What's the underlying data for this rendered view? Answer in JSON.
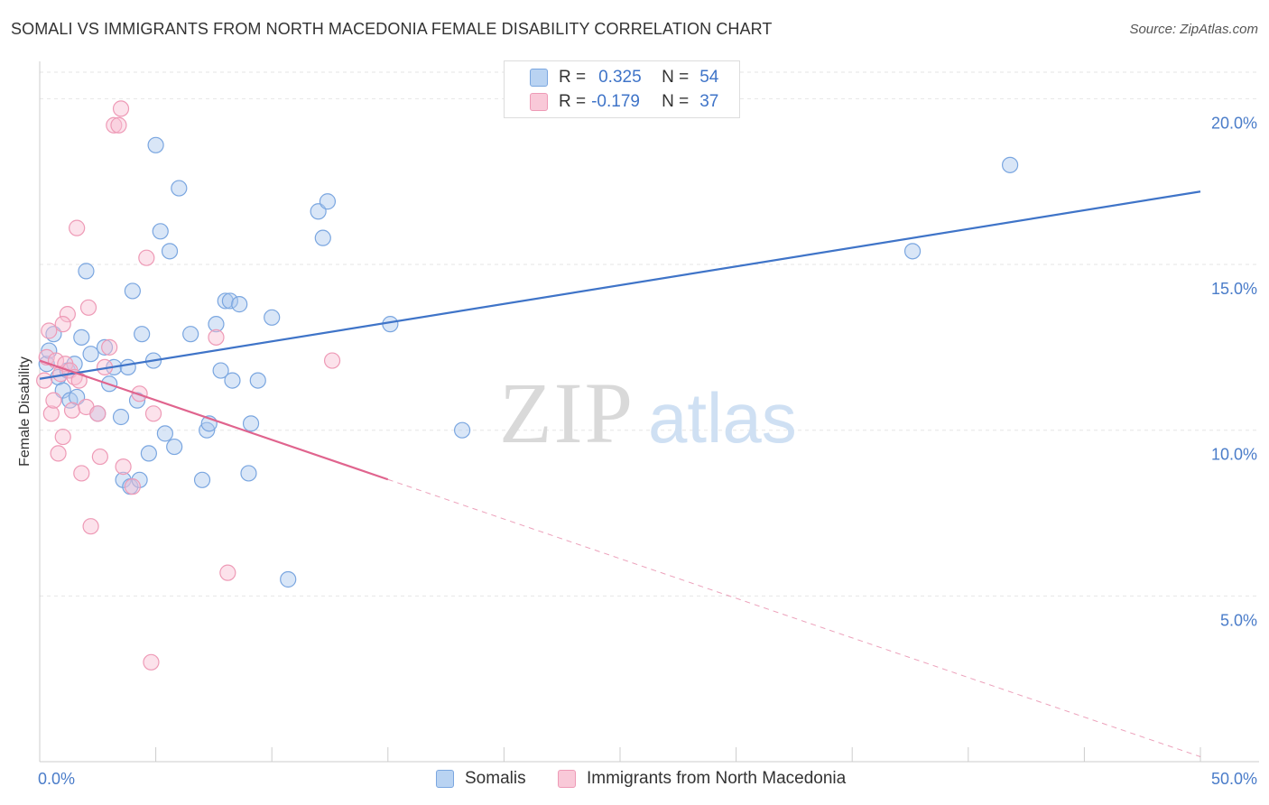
{
  "title": "SOMALI VS IMMIGRANTS FROM NORTH MACEDONIA FEMALE DISABILITY CORRELATION CHART",
  "source": "Source: ZipAtlas.com",
  "watermark": {
    "zip": "ZIP",
    "atlas": "atlas"
  },
  "legend": {
    "r_label": "R =",
    "n_label": "N =",
    "rows": [
      {
        "r": "0.325",
        "n": "54",
        "fill": "#b9d3f2",
        "stroke": "#7aa6e0"
      },
      {
        "r": "-0.179",
        "n": "37",
        "fill": "#f9c9d8",
        "stroke": "#ee9ab6"
      }
    ]
  },
  "bottom_legend": [
    {
      "label": "Somalis",
      "fill": "#b9d3f2",
      "stroke": "#7aa6e0"
    },
    {
      "label": "Immigrants from North Macedonia",
      "fill": "#f9c9d8",
      "stroke": "#ee9ab6"
    }
  ],
  "chart_data": {
    "type": "scatter",
    "ylabel": "Female Disability",
    "xlabel": "",
    "xlim": [
      0,
      50
    ],
    "ylim": [
      0,
      20.8
    ],
    "x_tick_labels": {
      "left": "0.0%",
      "right": "50.0%"
    },
    "y_ticks": [
      {
        "value": 5,
        "label": "5.0%"
      },
      {
        "value": 10,
        "label": "10.0%"
      },
      {
        "value": 15,
        "label": "15.0%"
      },
      {
        "value": 20,
        "label": "20.0%"
      }
    ],
    "series": [
      {
        "name": "Somalis",
        "color": "#3f74c8",
        "fill": "rgba(170,200,238,0.45)",
        "stroke": "#7aa6e0",
        "trend": {
          "x0": 0,
          "y0": 11.55,
          "x1": 50,
          "y1": 17.2,
          "solid_to": 50
        },
        "points": [
          [
            0.3,
            12.0
          ],
          [
            0.4,
            12.4
          ],
          [
            0.6,
            12.9
          ],
          [
            0.8,
            11.6
          ],
          [
            1.0,
            11.2
          ],
          [
            1.2,
            11.8
          ],
          [
            1.3,
            10.9
          ],
          [
            1.5,
            12.0
          ],
          [
            1.6,
            11.0
          ],
          [
            1.8,
            12.8
          ],
          [
            2.0,
            14.8
          ],
          [
            2.2,
            12.3
          ],
          [
            2.5,
            10.5
          ],
          [
            2.8,
            12.5
          ],
          [
            3.0,
            11.4
          ],
          [
            3.2,
            11.9
          ],
          [
            3.5,
            10.4
          ],
          [
            3.6,
            8.5
          ],
          [
            3.8,
            11.9
          ],
          [
            3.9,
            8.3
          ],
          [
            4.0,
            14.2
          ],
          [
            4.2,
            10.9
          ],
          [
            4.3,
            8.5
          ],
          [
            4.4,
            12.9
          ],
          [
            4.7,
            9.3
          ],
          [
            4.9,
            12.1
          ],
          [
            5.0,
            18.6
          ],
          [
            5.2,
            16.0
          ],
          [
            5.4,
            9.9
          ],
          [
            5.6,
            15.4
          ],
          [
            5.8,
            9.5
          ],
          [
            6.0,
            17.3
          ],
          [
            6.5,
            12.9
          ],
          [
            7.0,
            8.5
          ],
          [
            7.2,
            10.0
          ],
          [
            7.3,
            10.2
          ],
          [
            7.6,
            13.2
          ],
          [
            7.8,
            11.8
          ],
          [
            8.0,
            13.9
          ],
          [
            8.2,
            13.9
          ],
          [
            8.3,
            11.5
          ],
          [
            8.6,
            13.8
          ],
          [
            9.0,
            8.7
          ],
          [
            9.1,
            10.2
          ],
          [
            9.4,
            11.5
          ],
          [
            10.0,
            13.4
          ],
          [
            10.7,
            5.5
          ],
          [
            12.0,
            16.6
          ],
          [
            12.2,
            15.8
          ],
          [
            12.4,
            16.9
          ],
          [
            15.1,
            13.2
          ],
          [
            18.2,
            10.0
          ],
          [
            37.6,
            15.4
          ],
          [
            41.8,
            18.0
          ]
        ]
      },
      {
        "name": "Immigrants from North Macedonia",
        "color": "#e0648e",
        "fill": "rgba(248,190,210,0.45)",
        "stroke": "#ee9ab6",
        "trend": {
          "x0": 0,
          "y0": 12.1,
          "x1": 50,
          "y1": 0.15,
          "solid_to": 15.0
        },
        "points": [
          [
            0.2,
            11.5
          ],
          [
            0.3,
            12.2
          ],
          [
            0.4,
            13.0
          ],
          [
            0.5,
            10.5
          ],
          [
            0.6,
            10.9
          ],
          [
            0.7,
            12.1
          ],
          [
            0.8,
            9.3
          ],
          [
            0.9,
            11.7
          ],
          [
            1.0,
            9.8
          ],
          [
            1.1,
            12.0
          ],
          [
            1.2,
            13.5
          ],
          [
            1.3,
            11.8
          ],
          [
            1.4,
            10.6
          ],
          [
            1.5,
            11.6
          ],
          [
            1.6,
            16.1
          ],
          [
            1.7,
            11.5
          ],
          [
            1.8,
            8.7
          ],
          [
            2.0,
            10.7
          ],
          [
            2.1,
            13.7
          ],
          [
            2.2,
            7.1
          ],
          [
            2.5,
            10.5
          ],
          [
            2.6,
            9.2
          ],
          [
            3.0,
            12.5
          ],
          [
            3.2,
            19.2
          ],
          [
            3.4,
            19.2
          ],
          [
            3.5,
            19.7
          ],
          [
            3.6,
            8.9
          ],
          [
            4.0,
            8.3
          ],
          [
            4.3,
            11.1
          ],
          [
            4.6,
            15.2
          ],
          [
            4.8,
            3.0
          ],
          [
            4.9,
            10.5
          ],
          [
            7.6,
            12.8
          ],
          [
            8.1,
            5.7
          ],
          [
            12.6,
            12.1
          ],
          [
            1.0,
            13.2
          ],
          [
            2.8,
            11.9
          ]
        ]
      }
    ]
  }
}
